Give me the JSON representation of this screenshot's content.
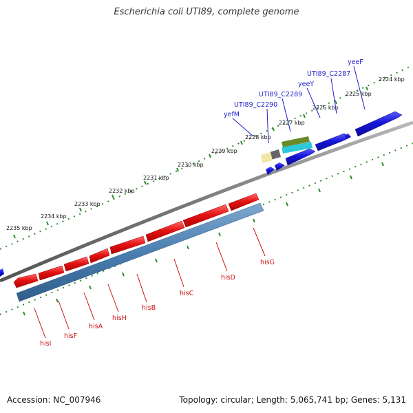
{
  "title": "Escherichia coli UTI89, complete genome",
  "footer": {
    "accession": "Accession: NC_007946",
    "summary": "Topology: circular; Length: 5,065,741 bp; Genes: 5,131"
  },
  "scale_labels": [
    "2224 kbp",
    "2225 kbp",
    "2226 kbp",
    "2227 kbp",
    "2228 kbp",
    "2229 kbp",
    "2230 kbp",
    "2231 kbp",
    "2232 kbp",
    "2233 kbp",
    "2234 kbp",
    "2235 kbp"
  ],
  "genes_forward": [
    "yeeF",
    "UTI89_C2287",
    "yeeY",
    "UTI89_C2289",
    "UTI89_C2290",
    "yefM"
  ],
  "genes_reverse": [
    "hisG",
    "hisD",
    "hisC",
    "hisB",
    "hisH",
    "hisA",
    "hisF",
    "hisI"
  ],
  "colors": {
    "forward_cds": "#1a1ad6",
    "reverse_cds": "#e01010",
    "operon": "#4a7fb0",
    "backbone": "#8a8a8a",
    "ticks": "#2e8b2e",
    "label_forward": "#1d1dcc",
    "label_reverse": "#cc1111"
  }
}
